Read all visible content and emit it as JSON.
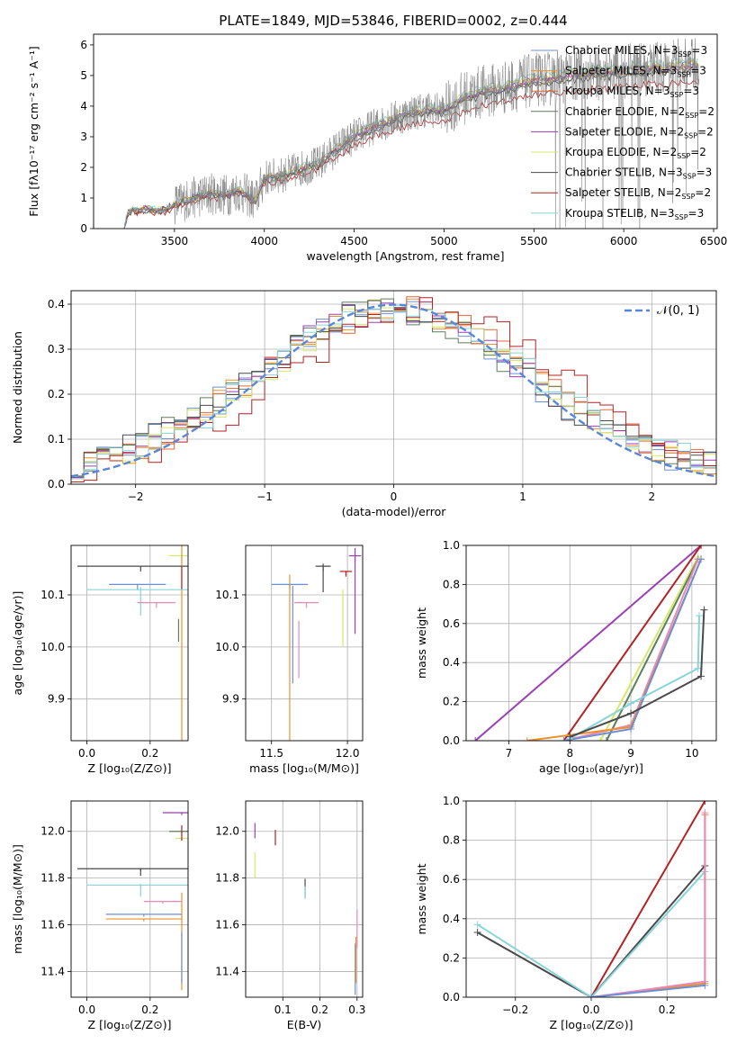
{
  "figure_title": "PLATE=1849, MJD=53846, FIBERID=0002, z=0.444",
  "chart_data": [
    {
      "id": "spectrum",
      "type": "line",
      "xlabel": "wavelength [Angstrom, rest frame]",
      "ylabel": "Flux [fλ10⁻¹⁷ erg cm⁻² s⁻¹ A⁻¹]",
      "xlim": [
        3050,
        6520
      ],
      "ylim": [
        0,
        6.35
      ],
      "xticks": [
        "3500",
        "4000",
        "4500",
        "5000",
        "5500",
        "6000",
        "6500"
      ],
      "yticks": [
        "0",
        "1",
        "2",
        "3",
        "4",
        "5",
        "6"
      ],
      "grid": false,
      "legend": "right",
      "data_series_color": "#808080",
      "data_x": [
        3220,
        3240,
        3260,
        3280,
        3300,
        3350,
        3400,
        3450,
        3500,
        3600,
        3700,
        3800,
        3850,
        3900,
        3950,
        4000,
        4100,
        4200,
        4300,
        4400,
        4500,
        4600,
        4700,
        4800,
        4900,
        5000,
        5100,
        5200,
        5300,
        5400,
        5500,
        5600,
        5700,
        5800,
        5900,
        6000,
        6100,
        6200,
        6300,
        6400
      ],
      "data_y": [
        0,
        0.5,
        0.6,
        0.58,
        0.6,
        0.65,
        0.6,
        0.62,
        0.8,
        1.0,
        1.15,
        1.1,
        1.25,
        1.1,
        0.9,
        1.65,
        1.75,
        1.95,
        2.1,
        2.6,
        3.0,
        3.3,
        3.55,
        3.75,
        3.9,
        3.85,
        4.25,
        4.45,
        4.55,
        4.7,
        4.85,
        4.9,
        5.0,
        5.05,
        5.1,
        5.15,
        5.2,
        5.25,
        5.3,
        5.35
      ],
      "models": [
        {
          "name": "Chabrier MILES, N$_{SSP}$=3",
          "color": "#6b8fd6",
          "scale": 1.0
        },
        {
          "name": "Salpeter MILES, N$_{SSP}$=3",
          "color": "#f0902a",
          "scale": 1.01
        },
        {
          "name": "Kroupa MILES, N$_{SSP}$=3",
          "color": "#e2683c",
          "scale": 0.99
        },
        {
          "name": "Chabrier ELODIE, N$_{SSP}$=2",
          "color": "#5b7f5b",
          "scale": 0.98
        },
        {
          "name": "Salpeter ELODIE, N$_{SSP}$=2",
          "color": "#9a3fb5",
          "scale": 1.0
        },
        {
          "name": "Kroupa ELODIE, N$_{SSP}$=2",
          "color": "#d6e86a",
          "scale": 1.02
        },
        {
          "name": "Chabrier STELIB, N$_{SSP}$=3",
          "color": "#4a4a4a",
          "scale": 0.97
        },
        {
          "name": "Salpeter STELIB, N$_{SSP}$=2",
          "color": "#b22222",
          "scale": 0.9
        },
        {
          "name": "Kroupa STELIB, N$_{SSP}$=3",
          "color": "#88d4d8",
          "scale": 1.03
        }
      ]
    },
    {
      "id": "residuals",
      "type": "histogram",
      "xlabel": "(data-model)/error",
      "ylabel": "Normed distribution",
      "xlim": [
        -2.5,
        2.5
      ],
      "ylim": [
        0,
        0.43
      ],
      "xticks": [
        "−2",
        "−1",
        "0",
        "1",
        "2"
      ],
      "yticks": [
        "0.0",
        "0.1",
        "0.2",
        "0.3",
        "0.4"
      ],
      "grid": true,
      "legend_label": "𝒩(0, 1)",
      "legend": "top-right",
      "normal_color": "#5b86d8"
    },
    {
      "id": "age_vs_Z",
      "type": "errorbar",
      "xlabel": "Z [log₁₀(Z/Z⊙)]",
      "ylabel": "age  [log₁₀(age/yr)]",
      "xlim": [
        -0.05,
        0.32
      ],
      "ylim": [
        9.82,
        10.195
      ],
      "xticks": [
        "0.0",
        "0.2"
      ],
      "xtick_values": [
        0.0,
        0.2
      ],
      "yticks": [
        "9.9",
        "10.0",
        "10.1"
      ],
      "ytick_values": [
        9.9,
        10.0,
        10.1
      ],
      "grid": true,
      "points": [
        {
          "x": 0.3,
          "y": 10.175,
          "xe": 0.04,
          "ye": 0.01,
          "c": "#d6e86a"
        },
        {
          "x": 0.3,
          "y": 10.17,
          "xe": 0.0,
          "ye": 0.35,
          "c": "#f0902a"
        },
        {
          "x": 0.3,
          "y": 10.15,
          "xe": 0.0,
          "ye": 0.04,
          "c": "#b22222"
        },
        {
          "x": 0.17,
          "y": 10.155,
          "xe": 0.2,
          "ye": 0.01,
          "c": "#4a4a4a"
        },
        {
          "x": 0.16,
          "y": 10.12,
          "xe": 0.09,
          "ye": 0.01,
          "c": "#6b8fd6"
        },
        {
          "x": 0.17,
          "y": 10.11,
          "xe": 0.17,
          "ye": 0.05,
          "c": "#88d4d8"
        },
        {
          "x": 0.22,
          "y": 10.085,
          "xe": 0.06,
          "ye": 0.01,
          "c": "#e88ab8"
        },
        {
          "x": 0.29,
          "y": 10.05,
          "xe": 0.0,
          "ye": 0.04,
          "c": "#5b7f5b"
        }
      ]
    },
    {
      "id": "age_vs_mass",
      "type": "errorbar",
      "xlabel": "mass [log₁₀(M/M⊙)]",
      "ylabel": "",
      "xlim": [
        11.33,
        12.1
      ],
      "ylim": [
        9.82,
        10.195
      ],
      "xticks": [
        "11.5",
        "12.0"
      ],
      "xtick_values": [
        11.5,
        12.0
      ],
      "yticks": [
        "9.9",
        "10.0",
        "10.1"
      ],
      "ytick_values": [
        9.9,
        10.0,
        10.1
      ],
      "grid": true,
      "points": [
        {
          "x": 12.05,
          "y": 10.175,
          "xe": 0.04,
          "ye": 0.01,
          "c": "#9a3fb5"
        },
        {
          "x": 12.05,
          "y": 10.175,
          "xe": 0.0,
          "ye": 0.15,
          "c": "#9a3fb5"
        },
        {
          "x": 11.99,
          "y": 10.145,
          "xe": 0.04,
          "ye": 0.01,
          "c": "#b22222"
        },
        {
          "x": 11.97,
          "y": 10.1,
          "xe": 0.0,
          "ye": 0.1,
          "c": "#d6e86a"
        },
        {
          "x": 11.84,
          "y": 10.155,
          "xe": 0.05,
          "ye": 0.01,
          "c": "#4a4a4a"
        },
        {
          "x": 11.84,
          "y": 10.155,
          "xe": 0.0,
          "ye": 0.05,
          "c": "#4a4a4a"
        },
        {
          "x": 11.62,
          "y": 10.12,
          "xe": 0.12,
          "ye": 0.01,
          "c": "#6b8fd6"
        },
        {
          "x": 11.62,
          "y": 10.11,
          "xe": 0.0,
          "ye": 0.29,
          "c": "#f0902a"
        },
        {
          "x": 11.64,
          "y": 10.1,
          "xe": 0.0,
          "ye": 0.17,
          "c": "#6b8fd6"
        },
        {
          "x": 11.73,
          "y": 10.085,
          "xe": 0.08,
          "ye": 0.01,
          "c": "#e88ab8"
        },
        {
          "x": 11.68,
          "y": 10.04,
          "xe": 0.0,
          "ye": 0.1,
          "c": "#e88ab8"
        }
      ]
    },
    {
      "id": "massweight_vs_age",
      "type": "line",
      "xlabel": "age  [log₁₀(age/yr)]",
      "ylabel": "mass weight",
      "xlim": [
        6.3,
        10.4
      ],
      "ylim": [
        0,
        1.0
      ],
      "xticks": [
        "7",
        "8",
        "9",
        "10"
      ],
      "xtick_values": [
        7,
        8,
        9,
        10
      ],
      "yticks": [
        "0.0",
        "0.2",
        "0.4",
        "0.6",
        "0.8",
        "1.0"
      ],
      "ytick_values": [
        0,
        0.2,
        0.4,
        0.6,
        0.8,
        1.0
      ],
      "grid": true,
      "lines": [
        {
          "c": "#9a3fb5",
          "x": [
            6.45,
            10.15
          ],
          "y": [
            0,
            1.0
          ]
        },
        {
          "c": "#b22222",
          "x": [
            7.9,
            10.15
          ],
          "y": [
            0,
            1.0
          ]
        },
        {
          "c": "#d6e86a",
          "x": [
            8.5,
            10.1
          ],
          "y": [
            0,
            0.94
          ]
        },
        {
          "c": "#5b7f5b",
          "x": [
            8.6,
            10.1
          ],
          "y": [
            0,
            0.93
          ]
        },
        {
          "c": "#e88ab8",
          "x": [
            7.9,
            9.0,
            10.1
          ],
          "y": [
            0,
            0.08,
            0.93
          ]
        },
        {
          "c": "#f0902a",
          "x": [
            7.3,
            9.0,
            10.15
          ],
          "y": [
            0,
            0.07,
            0.93
          ]
        },
        {
          "c": "#6b8fd6",
          "x": [
            7.9,
            9.0,
            10.15
          ],
          "y": [
            0,
            0.06,
            0.93
          ]
        },
        {
          "c": "#88d4d8",
          "x": [
            8.0,
            9.0,
            10.1,
            10.12
          ],
          "y": [
            0.01,
            0.19,
            0.37,
            0.64
          ]
        },
        {
          "c": "#4a4a4a",
          "x": [
            8.0,
            9.0,
            10.15,
            10.2
          ],
          "y": [
            0.02,
            0.14,
            0.33,
            0.67
          ]
        }
      ]
    },
    {
      "id": "mass_vs_Z",
      "type": "errorbar",
      "xlabel": "Z [log₁₀(Z/Z⊙)]",
      "ylabel": "mass [log₁₀(M/M⊙)]",
      "xlim": [
        -0.05,
        0.32
      ],
      "ylim": [
        11.29,
        12.13
      ],
      "xticks": [
        "0.0",
        "0.2"
      ],
      "xtick_values": [
        0.0,
        0.2
      ],
      "yticks": [
        "11.4",
        "11.6",
        "11.8",
        "12.0"
      ],
      "ytick_values": [
        11.4,
        11.6,
        11.8,
        12.0
      ],
      "grid": true,
      "points": [
        {
          "x": 0.3,
          "y": 12.08,
          "xe": 0.06,
          "ye": 0.01,
          "c": "#9a3fb5"
        },
        {
          "x": 0.3,
          "y": 12.0,
          "xe": 0.04,
          "ye": 0.01,
          "c": "#5b7f5b"
        },
        {
          "x": 0.3,
          "y": 11.97,
          "xe": 0.02,
          "ye": 0.01,
          "c": "#d6e86a"
        },
        {
          "x": 0.3,
          "y": 12.02,
          "xe": 0.0,
          "ye": 0.06,
          "c": "#b22222"
        },
        {
          "x": 0.3,
          "y": 11.7,
          "xe": 0.0,
          "ye": 0.38,
          "c": "#f0902a"
        },
        {
          "x": 0.17,
          "y": 11.84,
          "xe": 0.2,
          "ye": 0.01,
          "c": "#4a4a4a"
        },
        {
          "x": 0.17,
          "y": 11.84,
          "xe": 0.0,
          "ye": 0.03,
          "c": "#4a4a4a"
        },
        {
          "x": 0.17,
          "y": 11.77,
          "xe": 0.17,
          "ye": 0.01,
          "c": "#88d4d8"
        },
        {
          "x": 0.17,
          "y": 11.77,
          "xe": 0.0,
          "ye": 0.05,
          "c": "#88d4d8"
        },
        {
          "x": 0.24,
          "y": 11.7,
          "xe": 0.06,
          "ye": 0.01,
          "c": "#e88ab8"
        },
        {
          "x": 0.18,
          "y": 11.645,
          "xe": 0.12,
          "ye": 0.01,
          "c": "#6b8fd6"
        },
        {
          "x": 0.18,
          "y": 11.625,
          "xe": 0.12,
          "ye": 0.01,
          "c": "#f0902a"
        },
        {
          "x": 0.3,
          "y": 11.55,
          "xe": 0.0,
          "ye": 0.2,
          "c": "#6b8fd6"
        }
      ]
    },
    {
      "id": "mass_vs_EBV",
      "type": "errorbar",
      "xlabel": "E(B-V)",
      "ylabel": "",
      "xlim": [
        0.0,
        0.315
      ],
      "ylim": [
        11.29,
        12.13
      ],
      "xticks": [
        "0.1",
        "0.2",
        "0.3"
      ],
      "xtick_values": [
        0.1,
        0.2,
        0.3
      ],
      "yticks": [
        "11.4",
        "11.6",
        "11.8",
        "12.0"
      ],
      "ytick_values": [
        11.4,
        11.6,
        11.8,
        12.0
      ],
      "grid": true,
      "points": [
        {
          "x": 0.025,
          "y": 12.03,
          "xe": 0.0,
          "ye": 0.06,
          "c": "#9a3fb5"
        },
        {
          "x": 0.025,
          "y": 11.9,
          "xe": 0.0,
          "ye": 0.1,
          "c": "#d6e86a"
        },
        {
          "x": 0.08,
          "y": 12.0,
          "xe": 0.0,
          "ye": 0.06,
          "c": "#b22222"
        },
        {
          "x": 0.16,
          "y": 11.79,
          "xe": 0.0,
          "ye": 0.07,
          "c": "#4a4a4a"
        },
        {
          "x": 0.16,
          "y": 11.76,
          "xe": 0.0,
          "ye": 0.05,
          "c": "#88d4d8"
        },
        {
          "x": 0.3,
          "y": 11.65,
          "xe": 0.0,
          "ye": 0.15,
          "c": "#e88ab8"
        },
        {
          "x": 0.295,
          "y": 11.5,
          "xe": 0.0,
          "ye": 0.2,
          "c": "#6b8fd6"
        },
        {
          "x": 0.297,
          "y": 11.53,
          "xe": 0.0,
          "ye": 0.18,
          "c": "#f0902a"
        }
      ]
    },
    {
      "id": "massweight_vs_Z",
      "type": "line",
      "xlabel": "Z [log₁₀(Z/Z⊙)]",
      "ylabel": "mass weight",
      "xlim": [
        -0.33,
        0.33
      ],
      "ylim": [
        0,
        1.0
      ],
      "xticks": [
        "−0.2",
        "0.0",
        "0.2"
      ],
      "xtick_values": [
        -0.2,
        0.0,
        0.2
      ],
      "yticks": [
        "0.0",
        "0.2",
        "0.4",
        "0.6",
        "0.8",
        "1.0"
      ],
      "ytick_values": [
        0,
        0.2,
        0.4,
        0.6,
        0.8,
        1.0
      ],
      "grid": true,
      "lines": [
        {
          "c": "#b22222",
          "x": [
            0.0,
            0.3
          ],
          "y": [
            0,
            1.0
          ]
        },
        {
          "c": "#4a4a4a",
          "x": [
            0.0,
            0.3
          ],
          "y": [
            0,
            0.67
          ]
        },
        {
          "c": "#88d4d8",
          "x": [
            0.0,
            0.3
          ],
          "y": [
            0,
            0.64
          ]
        },
        {
          "c": "#4a4a4a",
          "x": [
            -0.3,
            0.0
          ],
          "y": [
            0.33,
            0
          ]
        },
        {
          "c": "#88d4d8",
          "x": [
            -0.3,
            0.0
          ],
          "y": [
            0.37,
            0
          ]
        },
        {
          "c": "#f0902a",
          "x": [
            0.0,
            0.3,
            0.3
          ],
          "y": [
            0,
            0.07,
            0.93
          ]
        },
        {
          "c": "#e88ab8",
          "x": [
            0.0,
            0.3,
            0.3
          ],
          "y": [
            0,
            0.08,
            0.94
          ]
        },
        {
          "c": "#6b8fd6",
          "x": [
            0.0,
            0.3
          ],
          "y": [
            0,
            0.06
          ]
        }
      ]
    }
  ]
}
